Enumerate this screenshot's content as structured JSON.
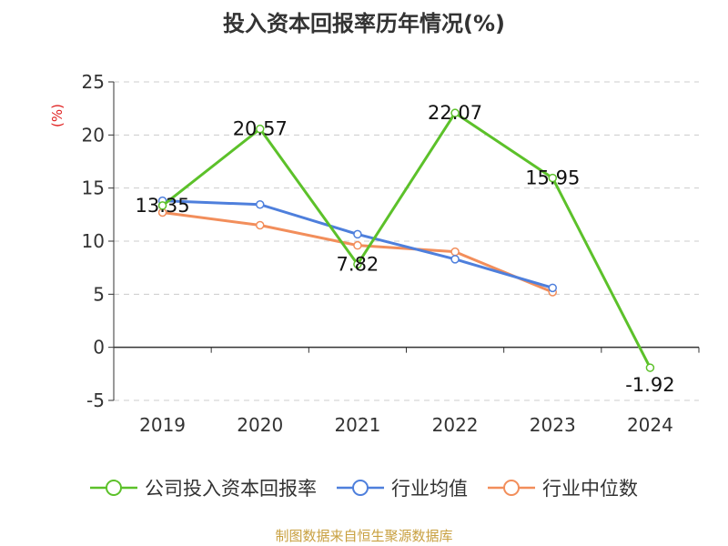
{
  "chart_data": {
    "type": "line",
    "title": "投入资本回报率历年情况(%)",
    "ylabel": "(%)",
    "xlabel": "",
    "categories": [
      "2019",
      "2020",
      "2021",
      "2022",
      "2023",
      "2024"
    ],
    "ylim": [
      -5,
      25
    ],
    "yticks": [
      25,
      20,
      15,
      10,
      5,
      0,
      -5
    ],
    "grid": true,
    "legend_position": "bottom",
    "series": [
      {
        "name": "公司投入资本回报率",
        "color": "#5cc12a",
        "values": [
          13.35,
          20.57,
          7.82,
          22.07,
          15.95,
          -1.92
        ],
        "labels": [
          "13.35",
          "20.57",
          "7.82",
          "22.07",
          "15.95",
          "-1.92"
        ]
      },
      {
        "name": "行业均值",
        "color": "#4e7fdc",
        "values": [
          13.8,
          13.45,
          10.65,
          8.3,
          5.6,
          null
        ]
      },
      {
        "name": "行业中位数",
        "color": "#f28e5b",
        "values": [
          12.7,
          11.5,
          9.6,
          9.0,
          5.2,
          null
        ]
      }
    ]
  },
  "footer": {
    "source": "制图数据来自恒生聚源数据库"
  }
}
